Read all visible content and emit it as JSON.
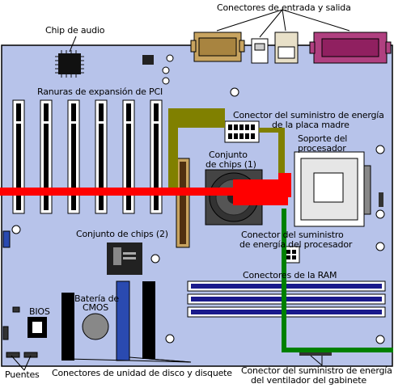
{
  "labels": {
    "io": "Conectores de entrada y salida",
    "audio": "Chip de audio",
    "pci": "Ranuras de expansión de PCI",
    "board_power_1": "Conector del suministro de energía",
    "board_power_2": "de la placa madre",
    "chipset1_1": "Conjunto",
    "chipset1_2": "de chips (1)",
    "socket_1": "Soporte del",
    "socket_2": "procesador",
    "cpu_power_1": "Conector del suministro",
    "cpu_power_2": "de energía del procesador",
    "chipset2": "Conjunto de chips (2)",
    "ram": "Conectores de la RAM",
    "battery_1": "Batería de",
    "battery_2": "CMOS",
    "bios": "BIOS",
    "jumpers": "Puentes",
    "drives": "Conectores de unidad de disco y disquete",
    "fan_1": "Conector del suministro de energía",
    "fan_2": "del ventilador del gabinete"
  },
  "colors": {
    "board": "#b7c3ea",
    "board_power_cable": "#808000",
    "cpu_power_cable": "#ff0000",
    "fan_cable": "#008000",
    "ram_slot": "#1a1a8c",
    "ide_blue": "#2a4ab0"
  }
}
